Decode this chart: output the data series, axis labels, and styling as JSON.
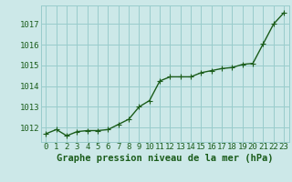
{
  "x": [
    0,
    1,
    2,
    3,
    4,
    5,
    6,
    7,
    8,
    9,
    10,
    11,
    12,
    13,
    14,
    15,
    16,
    17,
    18,
    19,
    20,
    21,
    22,
    23
  ],
  "y": [
    1011.7,
    1011.9,
    1011.6,
    1011.8,
    1011.85,
    1011.85,
    1011.9,
    1012.15,
    1012.4,
    1013.0,
    1013.3,
    1014.25,
    1014.45,
    1014.45,
    1014.45,
    1014.65,
    1014.75,
    1014.85,
    1014.9,
    1015.05,
    1015.1,
    1016.05,
    1017.0,
    1017.55
  ],
  "ylim": [
    1011.3,
    1017.9
  ],
  "yticks": [
    1012,
    1013,
    1014,
    1015,
    1016,
    1017
  ],
  "xlabel": "Graphe pression niveau de la mer (hPa)",
  "line_color": "#1a5c1a",
  "marker_color": "#1a5c1a",
  "bg_color": "#cce8e8",
  "grid_color": "#99cccc",
  "xlabel_color": "#1a5c1a",
  "tick_color": "#1a5c1a",
  "xlabel_fontsize": 7.5,
  "tick_fontsize": 6.5,
  "line_width": 1.0,
  "marker_size": 2.5
}
